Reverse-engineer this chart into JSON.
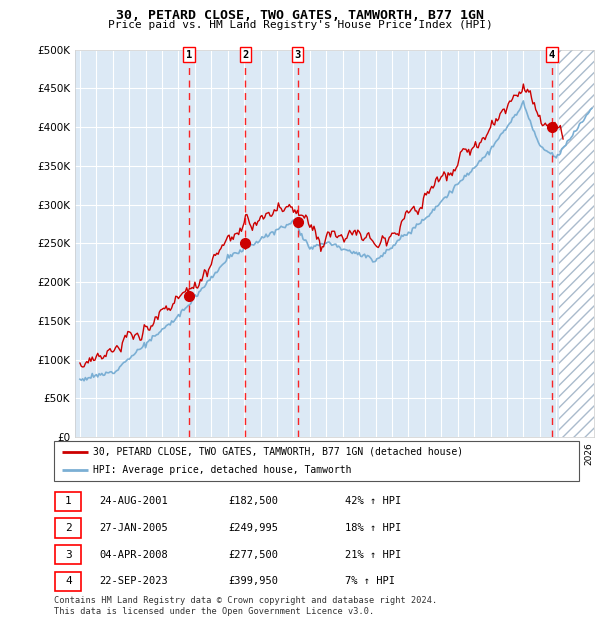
{
  "title": "30, PETARD CLOSE, TWO GATES, TAMWORTH, B77 1GN",
  "subtitle": "Price paid vs. HM Land Registry's House Price Index (HPI)",
  "ylim": [
    0,
    500000
  ],
  "yticks": [
    0,
    50000,
    100000,
    150000,
    200000,
    250000,
    300000,
    350000,
    400000,
    450000,
    500000
  ],
  "xlim_start": 1994.7,
  "xlim_end": 2026.3,
  "future_start": 2024.17,
  "sale_dates": [
    2001.65,
    2005.08,
    2008.25,
    2023.73
  ],
  "sale_prices": [
    182500,
    249995,
    277500,
    399950
  ],
  "sale_labels": [
    "1",
    "2",
    "3",
    "4"
  ],
  "hpi_line_color": "#7bafd4",
  "price_line_color": "#cc0000",
  "sale_marker_color": "#cc0000",
  "background_color": "#dce9f5",
  "grid_color": "#ffffff",
  "legend_label_price": "30, PETARD CLOSE, TWO GATES, TAMWORTH, B77 1GN (detached house)",
  "legend_label_hpi": "HPI: Average price, detached house, Tamworth",
  "table_data": [
    [
      "1",
      "24-AUG-2001",
      "£182,500",
      "42% ↑ HPI"
    ],
    [
      "2",
      "27-JAN-2005",
      "£249,995",
      "18% ↑ HPI"
    ],
    [
      "3",
      "04-APR-2008",
      "£277,500",
      "21% ↑ HPI"
    ],
    [
      "4",
      "22-SEP-2023",
      "£399,950",
      "7% ↑ HPI"
    ]
  ],
  "footer": "Contains HM Land Registry data © Crown copyright and database right 2024.\nThis data is licensed under the Open Government Licence v3.0."
}
